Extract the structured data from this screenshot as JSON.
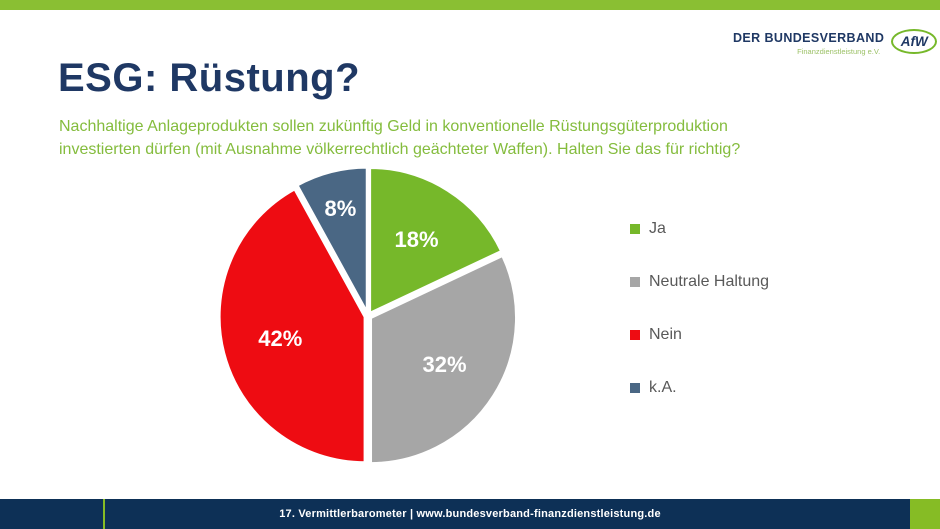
{
  "slide": {
    "top_bar_color": "#8ABF33",
    "background": "#FFFFFF"
  },
  "logo": {
    "org_name": "DER BUNDESVERBAND",
    "org_subtitle": "Finanzdienstleistung e.V.",
    "badge_text": "AfW",
    "navy": "#1F3864",
    "green": "#76B82A",
    "subtitle_green": "#9CC167"
  },
  "header": {
    "title": "ESG: Rüstung?",
    "title_color": "#1F3864",
    "subtitle_color": "#84BC3D",
    "subtitle_lines": [
      "Nachhaltige Anlageprodukten sollen zukünftig Geld in konventionelle Rüstungsgüterproduktion",
      "investierten dürfen (mit Ausnahme völkerrechtlich geächteter Waffen). Halten Sie das für richtig?"
    ]
  },
  "chart_data": {
    "type": "pie",
    "title": "ESG: Rüstung?",
    "question": "Nachhaltige Anlageprodukten sollen zukünftig Geld in konventionelle Rüstungsgüterproduktion investierten dürfen (mit Ausnahme völkerrechtlich geächteter Waffen). Halten Sie das für richtig?",
    "categories": [
      "Ja",
      "Neutrale Haltung",
      "Nein",
      "k.A."
    ],
    "values": [
      18,
      32,
      42,
      8
    ],
    "data_labels": [
      "18%",
      "32%",
      "42%",
      "8%"
    ],
    "colors": [
      "#76B82A",
      "#A6A6A6",
      "#EE0C12",
      "#4A6784"
    ],
    "start_angle_deg": 0,
    "direction": "clockwise",
    "legend_position": "right",
    "data_label_color": "#FFFFFF",
    "slice_border_color": "#FFFFFF"
  },
  "legend": {
    "text_color": "#595959"
  },
  "footer": {
    "text": "17. Vermittlerbarometer | www.bundesverband-finanzdienstleistung.de",
    "bar_color": "#0D3056",
    "accent_green": "#86BC25",
    "text_color": "#FFFFFF"
  }
}
